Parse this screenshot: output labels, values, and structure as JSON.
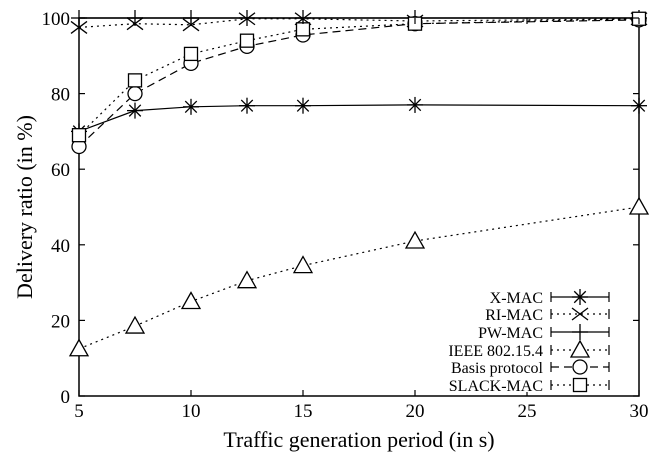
{
  "chart_data": {
    "type": "line",
    "title": "",
    "xlabel": "Traffic generation period (in s)",
    "ylabel": "Delivery ratio (in %)",
    "xlim": [
      5,
      30
    ],
    "ylim": [
      0,
      100
    ],
    "x_ticks": [
      5,
      10,
      15,
      20,
      25,
      30
    ],
    "y_ticks": [
      0,
      20,
      40,
      60,
      80,
      100
    ],
    "grid": false,
    "legend_position": "bottom-right",
    "series": [
      {
        "name": "X-MAC",
        "marker": "asterisk",
        "line": "solid",
        "x": [
          5,
          7.5,
          10,
          12.5,
          15,
          20,
          30
        ],
        "y": [
          70,
          75.5,
          76.5,
          76.8,
          76.8,
          77,
          76.8
        ]
      },
      {
        "name": "RI-MAC",
        "marker": "cross",
        "line": "dotted",
        "x": [
          5,
          7.5,
          10,
          12.5,
          15,
          20,
          30
        ],
        "y": [
          97.5,
          98.5,
          98.2,
          99.8,
          99.8,
          99.2,
          99.8
        ]
      },
      {
        "name": "PW-MAC",
        "marker": "plus",
        "line": "solid",
        "x": [
          5,
          7.5,
          10,
          12.5,
          15,
          20,
          30
        ],
        "y": [
          100,
          100,
          100,
          100,
          100,
          100,
          100
        ]
      },
      {
        "name": "IEEE 802.15.4",
        "marker": "triangle",
        "line": "dotted",
        "x": [
          5,
          7.5,
          10,
          12.5,
          15,
          20,
          30
        ],
        "y": [
          12.5,
          18.5,
          25,
          30.5,
          34.5,
          41,
          50
        ]
      },
      {
        "name": "Basis protocol",
        "marker": "circle",
        "line": "dashed",
        "x": [
          5,
          7.5,
          10,
          12.5,
          15,
          20,
          30
        ],
        "y": [
          66,
          80,
          88,
          92.5,
          95.5,
          98.5,
          99.5
        ]
      },
      {
        "name": "SLACK-MAC",
        "marker": "square",
        "line": "dotted",
        "x": [
          5,
          7.5,
          10,
          12.5,
          15,
          20,
          30
        ],
        "y": [
          69,
          83.5,
          90.5,
          94,
          97,
          98.5,
          99.8
        ]
      }
    ]
  }
}
